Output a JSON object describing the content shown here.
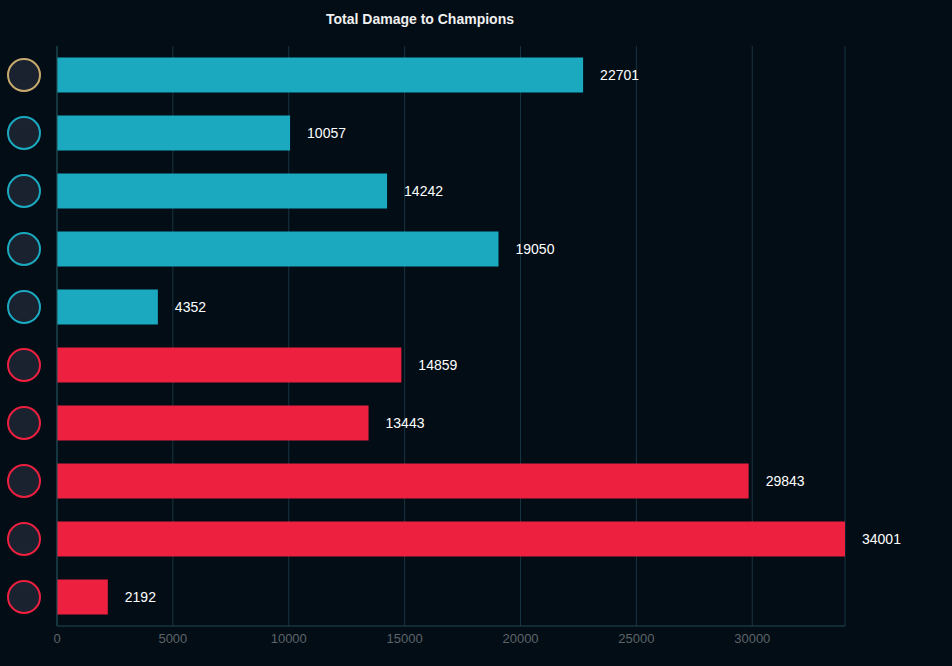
{
  "chart_data": {
    "type": "bar",
    "title": "Total Damage to Champions",
    "orientation": "horizontal",
    "categories": [
      null,
      null,
      null,
      null,
      null,
      null,
      null,
      null,
      null,
      null
    ],
    "values": [
      22701,
      10057,
      14242,
      19050,
      4352,
      14859,
      13443,
      29843,
      34001,
      2192
    ],
    "colors": [
      "#1ba9bf",
      "#1ba9bf",
      "#1ba9bf",
      "#1ba9bf",
      "#1ba9bf",
      "#ee2040",
      "#ee2040",
      "#ee2040",
      "#ee2040",
      "#ee2040"
    ],
    "xlim": [
      0,
      34001
    ],
    "xticks": [
      0,
      5000,
      10000,
      15000,
      20000,
      25000,
      30000
    ],
    "grid": true,
    "data_labels": true
  }
}
